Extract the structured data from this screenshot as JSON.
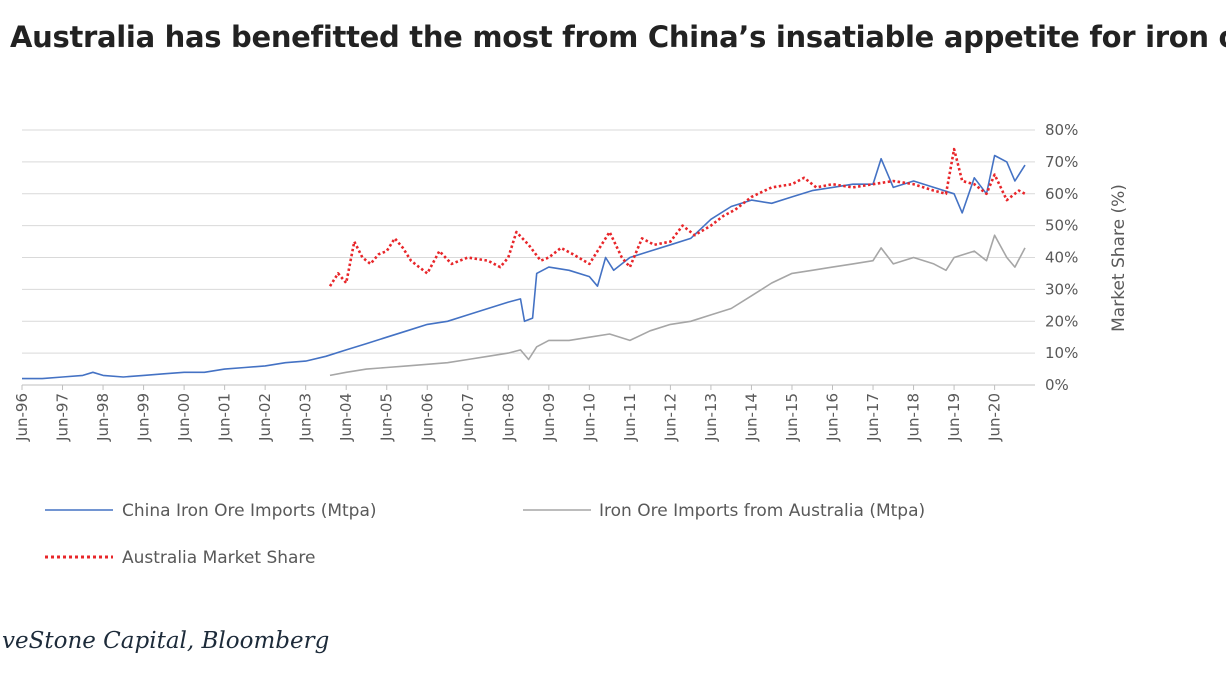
{
  "title": "Australia has benefitted the most from China’s insatiable appetite for iron or",
  "source": "veStone Capital, Bloomberg",
  "colors": {
    "china": "#4472c4",
    "australia_imports": "#a6a6a6",
    "market_share": "#e8262a",
    "grid": "#d9d9d9",
    "text": "#595959"
  },
  "chart_data": {
    "type": "line",
    "xlabel": "",
    "ylabel": "",
    "y2label": "Market Share (%)",
    "x_tick_labels": [
      "Jun-96",
      "Jun-97",
      "Jun-98",
      "Jun-99",
      "Jun-00",
      "Jun-01",
      "Jun-02",
      "Jun-03",
      "Jun-04",
      "Jun-05",
      "Jun-06",
      "Jun-07",
      "Jun-08",
      "Jun-09",
      "Jun-10",
      "Jun-11",
      "Jun-12",
      "Jun-13",
      "Jun-14",
      "Jun-15",
      "Jun-16",
      "Jun-17",
      "Jun-18",
      "Jun-19",
      "Jun-20"
    ],
    "y2_tick_labels": [
      "0%",
      "10%",
      "20%",
      "30%",
      "40%",
      "50%",
      "60%",
      "70%",
      "80%"
    ],
    "y2lim": [
      0,
      80
    ],
    "x_start_year": 1996,
    "x_end_year": 2020.75,
    "grid": true,
    "legend_position": "bottom",
    "series": [
      {
        "name": "China Iron Ore Imports (Mtpa)",
        "style": "solid",
        "points": [
          [
            1996,
            2
          ],
          [
            1996.5,
            2
          ],
          [
            1997,
            2.5
          ],
          [
            1997.5,
            3
          ],
          [
            1997.75,
            4
          ],
          [
            1998,
            3
          ],
          [
            1998.5,
            2.5
          ],
          [
            1999,
            3
          ],
          [
            1999.5,
            3.5
          ],
          [
            2000,
            4
          ],
          [
            2000.5,
            4
          ],
          [
            2001,
            5
          ],
          [
            2001.5,
            5.5
          ],
          [
            2002,
            6
          ],
          [
            2002.5,
            7
          ],
          [
            2003,
            7.5
          ],
          [
            2003.5,
            9
          ],
          [
            2004,
            11
          ],
          [
            2004.5,
            13
          ],
          [
            2005,
            15
          ],
          [
            2005.5,
            17
          ],
          [
            2006,
            19
          ],
          [
            2006.5,
            20
          ],
          [
            2007,
            22
          ],
          [
            2007.5,
            24
          ],
          [
            2008,
            26
          ],
          [
            2008.3,
            27
          ],
          [
            2008.4,
            20
          ],
          [
            2008.6,
            21
          ],
          [
            2008.7,
            35
          ],
          [
            2009,
            37
          ],
          [
            2009.5,
            36
          ],
          [
            2010,
            34
          ],
          [
            2010.2,
            31
          ],
          [
            2010.4,
            40
          ],
          [
            2010.6,
            36
          ],
          [
            2011,
            40
          ],
          [
            2011.5,
            42
          ],
          [
            2012,
            44
          ],
          [
            2012.5,
            46
          ],
          [
            2013,
            52
          ],
          [
            2013.5,
            56
          ],
          [
            2014,
            58
          ],
          [
            2014.5,
            57
          ],
          [
            2015,
            59
          ],
          [
            2015.5,
            61
          ],
          [
            2016,
            62
          ],
          [
            2016.5,
            63
          ],
          [
            2017,
            63
          ],
          [
            2017.2,
            71
          ],
          [
            2017.5,
            62
          ],
          [
            2018,
            64
          ],
          [
            2018.5,
            62
          ],
          [
            2019,
            60
          ],
          [
            2019.2,
            54
          ],
          [
            2019.5,
            65
          ],
          [
            2019.8,
            60
          ],
          [
            2020,
            72
          ],
          [
            2020.3,
            70
          ],
          [
            2020.5,
            64
          ],
          [
            2020.75,
            69
          ]
        ]
      },
      {
        "name": "Iron Ore Imports from Australia (Mtpa)",
        "style": "solid",
        "points": [
          [
            2003.6,
            3
          ],
          [
            2004,
            4
          ],
          [
            2004.5,
            5
          ],
          [
            2005,
            5.5
          ],
          [
            2005.5,
            6
          ],
          [
            2006,
            6.5
          ],
          [
            2006.5,
            7
          ],
          [
            2007,
            8
          ],
          [
            2007.5,
            9
          ],
          [
            2008,
            10
          ],
          [
            2008.3,
            11
          ],
          [
            2008.5,
            8
          ],
          [
            2008.7,
            12
          ],
          [
            2009,
            14
          ],
          [
            2009.5,
            14
          ],
          [
            2010,
            15
          ],
          [
            2010.5,
            16
          ],
          [
            2011,
            14
          ],
          [
            2011.5,
            17
          ],
          [
            2012,
            19
          ],
          [
            2012.5,
            20
          ],
          [
            2013,
            22
          ],
          [
            2013.5,
            24
          ],
          [
            2014,
            28
          ],
          [
            2014.5,
            32
          ],
          [
            2015,
            35
          ],
          [
            2015.5,
            36
          ],
          [
            2016,
            37
          ],
          [
            2016.5,
            38
          ],
          [
            2017,
            39
          ],
          [
            2017.2,
            43
          ],
          [
            2017.5,
            38
          ],
          [
            2018,
            40
          ],
          [
            2018.5,
            38
          ],
          [
            2018.8,
            36
          ],
          [
            2019,
            40
          ],
          [
            2019.5,
            42
          ],
          [
            2019.8,
            39
          ],
          [
            2020,
            47
          ],
          [
            2020.3,
            40
          ],
          [
            2020.5,
            37
          ],
          [
            2020.75,
            43
          ]
        ]
      },
      {
        "name": "Australia Market Share",
        "style": "dotted",
        "points": [
          [
            2003.6,
            31
          ],
          [
            2003.8,
            35
          ],
          [
            2004,
            32
          ],
          [
            2004.2,
            45
          ],
          [
            2004.4,
            40
          ],
          [
            2004.6,
            38
          ],
          [
            2004.8,
            41
          ],
          [
            2005,
            42
          ],
          [
            2005.2,
            46
          ],
          [
            2005.4,
            43
          ],
          [
            2005.6,
            39
          ],
          [
            2005.8,
            37
          ],
          [
            2006,
            35
          ],
          [
            2006.3,
            42
          ],
          [
            2006.6,
            38
          ],
          [
            2007,
            40
          ],
          [
            2007.5,
            39
          ],
          [
            2007.8,
            37
          ],
          [
            2008,
            40
          ],
          [
            2008.2,
            48
          ],
          [
            2008.5,
            44
          ],
          [
            2008.8,
            39
          ],
          [
            2009,
            40
          ],
          [
            2009.3,
            43
          ],
          [
            2009.6,
            41
          ],
          [
            2010,
            38
          ],
          [
            2010.3,
            44
          ],
          [
            2010.5,
            48
          ],
          [
            2010.8,
            40
          ],
          [
            2011,
            37
          ],
          [
            2011.3,
            46
          ],
          [
            2011.6,
            44
          ],
          [
            2012,
            45
          ],
          [
            2012.3,
            50
          ],
          [
            2012.6,
            47
          ],
          [
            2013,
            50
          ],
          [
            2013.3,
            53
          ],
          [
            2013.6,
            55
          ],
          [
            2014,
            59
          ],
          [
            2014.5,
            62
          ],
          [
            2015,
            63
          ],
          [
            2015.3,
            65
          ],
          [
            2015.6,
            62
          ],
          [
            2016,
            63
          ],
          [
            2016.5,
            62
          ],
          [
            2017,
            63
          ],
          [
            2017.5,
            64
          ],
          [
            2018,
            63
          ],
          [
            2018.5,
            61
          ],
          [
            2018.8,
            60
          ],
          [
            2019,
            74
          ],
          [
            2019.2,
            64
          ],
          [
            2019.5,
            63
          ],
          [
            2019.8,
            60
          ],
          [
            2020,
            66
          ],
          [
            2020.3,
            58
          ],
          [
            2020.6,
            61
          ],
          [
            2020.75,
            60
          ]
        ]
      }
    ]
  }
}
